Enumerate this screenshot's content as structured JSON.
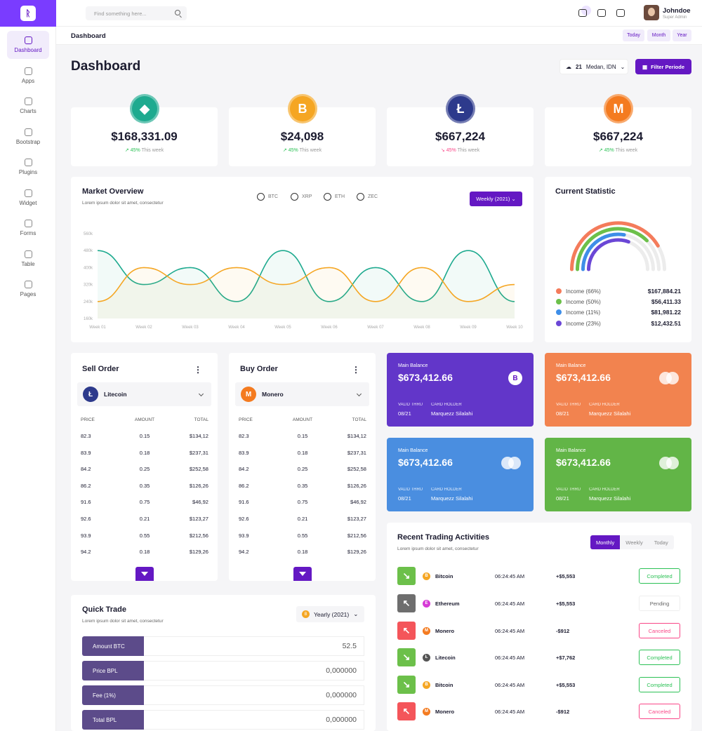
{
  "sidebar": {
    "items": [
      {
        "label": "Dashboard",
        "icon": "dashboard-icon"
      },
      {
        "label": "Apps",
        "icon": "apps-icon"
      },
      {
        "label": "Charts",
        "icon": "charts-icon"
      },
      {
        "label": "Bootstrap",
        "icon": "bootstrap-icon"
      },
      {
        "label": "Plugins",
        "icon": "plugins-icon"
      },
      {
        "label": "Widget",
        "icon": "widget-icon"
      },
      {
        "label": "Forms",
        "icon": "forms-icon"
      },
      {
        "label": "Table",
        "icon": "table-icon"
      },
      {
        "label": "Pages",
        "icon": "pages-icon"
      }
    ]
  },
  "header": {
    "search_placeholder": "Find something here...",
    "user_name": "Johndoe",
    "user_role": "Super Admin",
    "breadcrumb": "Dashboard",
    "range_buttons": [
      "Today",
      "Month",
      "Year"
    ]
  },
  "page": {
    "title": "Dashboard",
    "weather_temp": "21",
    "weather_location": "Medan, IDN",
    "filter_label": "Filter Periode"
  },
  "coins": [
    {
      "name": "Ethereum-like",
      "symbol": "◆",
      "value": "$168,331.09",
      "change": "45%",
      "period": "This week",
      "trend": "up",
      "color": "#1eaa8f"
    },
    {
      "name": "Bitcoin",
      "symbol": "B",
      "value": "$24,098",
      "change": "45%",
      "period": "This week",
      "trend": "up",
      "color": "#f5a623"
    },
    {
      "name": "Litecoin",
      "symbol": "Ł",
      "value": "$667,224",
      "change": "45%",
      "period": "This week",
      "trend": "down",
      "color": "#2d3a8c"
    },
    {
      "name": "Monero",
      "symbol": "M",
      "value": "$667,224",
      "change": "45%",
      "period": "This week",
      "trend": "up",
      "color": "#f47b20"
    }
  ],
  "market": {
    "title": "Market Overview",
    "subtitle": "Lorem ipsum dolor sit amet, consectetur",
    "radios": [
      "BTC",
      "XRP",
      "ETH",
      "ZEC"
    ],
    "dropdown": "Weekly (2021)"
  },
  "chart_data": {
    "type": "line",
    "categories": [
      "Week 01",
      "Week 02",
      "Week 03",
      "Week 04",
      "Week 05",
      "Week 06",
      "Week 07",
      "Week 08",
      "Week 09",
      "Week 10"
    ],
    "y_ticks": [
      "560k",
      "480k",
      "400k",
      "320k",
      "240k",
      "160k"
    ],
    "ylim": [
      160000,
      560000
    ],
    "series": [
      {
        "color": "#1eaa8f",
        "values": [
          480000,
          320000,
          400000,
          240000,
          480000,
          240000,
          400000,
          240000,
          480000,
          240000
        ]
      },
      {
        "color": "#f5a623",
        "values": [
          240000,
          400000,
          320000,
          400000,
          320000,
          400000,
          240000,
          400000,
          240000,
          320000
        ]
      }
    ]
  },
  "statistic": {
    "title": "Current Statistic",
    "items": [
      {
        "label": "Income (66%)",
        "value": "$167,884.21",
        "color": "#f47b5b",
        "fraction": 0.66
      },
      {
        "label": "Income (50%)",
        "value": "$56,411.33",
        "color": "#6cc04a",
        "fraction": 0.5
      },
      {
        "label": "Income (11%)",
        "value": "$81,981.22",
        "color": "#3e8ee8",
        "fraction": 0.11
      },
      {
        "label": "Income (23%)",
        "value": "$12,432.51",
        "color": "#6b47d6",
        "fraction": 0.23
      }
    ]
  },
  "sell_order": {
    "title": "Sell Order",
    "coin": "Litecoin",
    "headers": [
      "PRICE",
      "AMOUNT",
      "TOTAL"
    ],
    "rows": [
      [
        "82.3",
        "0.15",
        "$134,12"
      ],
      [
        "83.9",
        "0.18",
        "$237,31"
      ],
      [
        "84.2",
        "0.25",
        "$252,58"
      ],
      [
        "86.2",
        "0.35",
        "$126,26"
      ],
      [
        "91.6",
        "0.75",
        "$46,92"
      ],
      [
        "92.6",
        "0.21",
        "$123,27"
      ],
      [
        "93.9",
        "0.55",
        "$212,56"
      ],
      [
        "94.2",
        "0.18",
        "$129,26"
      ]
    ]
  },
  "buy_order": {
    "title": "Buy Order",
    "coin": "Monero",
    "headers": [
      "PRICE",
      "AMOUNT",
      "TOTAL"
    ],
    "rows": [
      [
        "82.3",
        "0.15",
        "$134,12"
      ],
      [
        "83.9",
        "0.18",
        "$237,31"
      ],
      [
        "84.2",
        "0.25",
        "$252,58"
      ],
      [
        "86.2",
        "0.35",
        "$126,26"
      ],
      [
        "91.6",
        "0.75",
        "$46,92"
      ],
      [
        "92.6",
        "0.21",
        "$123,27"
      ],
      [
        "93.9",
        "0.55",
        "$212,56"
      ],
      [
        "94.2",
        "0.18",
        "$129,26"
      ]
    ]
  },
  "balances": [
    {
      "label": "Main Balance",
      "amount": "$673,412.66",
      "valid_label": "VALID THRU",
      "valid": "08/21",
      "holder_label": "CARD HOLDER",
      "holder": "Marquezz Silalahi",
      "color": "#6236c9"
    },
    {
      "label": "Main Balance",
      "amount": "$673,412.66",
      "valid_label": "VALID THRU",
      "valid": "08/21",
      "holder_label": "CARD HOLDER",
      "holder": "Marquezz Silalahi",
      "color": "#f2834f"
    },
    {
      "label": "Main Balance",
      "amount": "$673,412.66",
      "valid_label": "VALID THRU",
      "valid": "08/21",
      "holder_label": "CARD HOLDER",
      "holder": "Marquezz Silalahi",
      "color": "#4a8ee0"
    },
    {
      "label": "Main Balance",
      "amount": "$673,412.66",
      "valid_label": "VALID THRU",
      "valid": "08/21",
      "holder_label": "CARD HOLDER",
      "holder": "Marquezz Silalahi",
      "color": "#62b547"
    }
  ],
  "quick_trade": {
    "title": "Quick Trade",
    "subtitle": "Lorem ipsum dolor sit amet, consectetur",
    "dropdown": "Yearly (2021)",
    "rows": [
      {
        "label": "Amount BTC",
        "value": "52.5"
      },
      {
        "label": "Price BPL",
        "value": "0,000000"
      },
      {
        "label": "Fee (1%)",
        "value": "0,000000"
      },
      {
        "label": "Total BPL",
        "value": "0,000000"
      }
    ]
  },
  "recent": {
    "title": "Recent Trading Activities",
    "subtitle": "Lorem ipsum dolor sit amet, consectetur",
    "tabs": [
      "Monthly",
      "Weekly",
      "Today"
    ],
    "rows": [
      {
        "coin": "Bitcoin",
        "time": "06:24:45 AM",
        "amount": "+$5,553",
        "status": "Completed",
        "dir": "in",
        "coin_color": "#f5a623",
        "coin_symbol": "B"
      },
      {
        "coin": "Ethereum",
        "time": "06:24:45 AM",
        "amount": "+$5,553",
        "status": "Pending",
        "dir": "out-grey",
        "coin_color": "#d63ad6",
        "coin_symbol": "E"
      },
      {
        "coin": "Monero",
        "time": "06:24:45 AM",
        "amount": "-$912",
        "status": "Canceled",
        "dir": "out",
        "coin_color": "#f47b20",
        "coin_symbol": "M"
      },
      {
        "coin": "Litecoin",
        "time": "06:24:45 AM",
        "amount": "+$7,762",
        "status": "Completed",
        "dir": "in",
        "coin_color": "#555555",
        "coin_symbol": "Ł"
      },
      {
        "coin": "Bitcoin",
        "time": "06:24:45 AM",
        "amount": "+$5,553",
        "status": "Completed",
        "dir": "in",
        "coin_color": "#f5a623",
        "coin_symbol": "B"
      },
      {
        "coin": "Monero",
        "time": "06:24:45 AM",
        "amount": "-$912",
        "status": "Canceled",
        "dir": "out",
        "coin_color": "#f47b20",
        "coin_symbol": "M"
      }
    ]
  }
}
